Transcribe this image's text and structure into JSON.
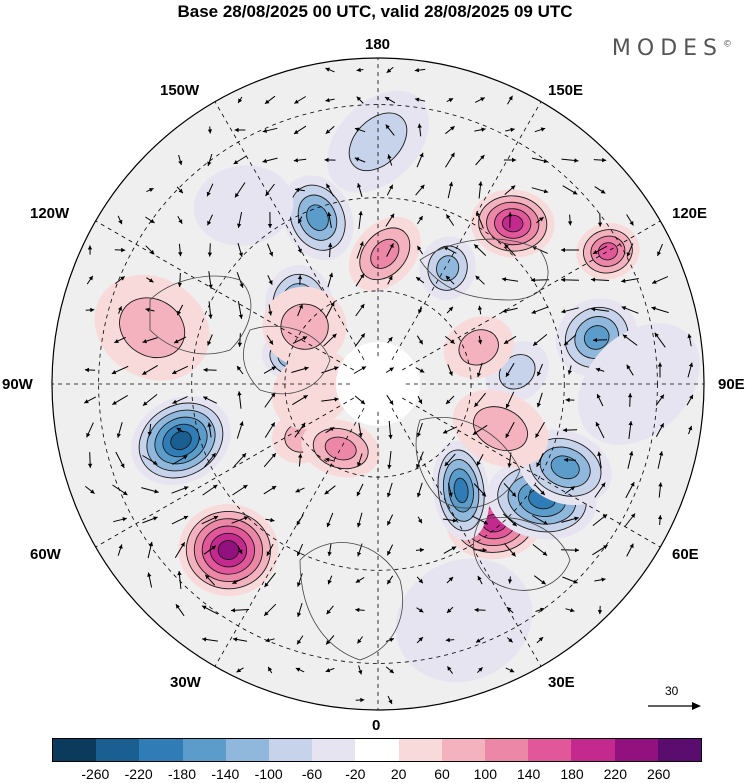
{
  "title": "Base 28/08/2025 00 UTC, valid 28/08/2025 09 UTC",
  "brand": "MODES",
  "brand_mark": "©",
  "longitude_labels": {
    "top": "180",
    "bottom": "0",
    "left": "90W",
    "right": "90E",
    "upper_left_1": "150W",
    "upper_left_2": "120W",
    "lower_left_1": "60W",
    "lower_left_2": "30W",
    "upper_right_1": "150E",
    "upper_right_2": "120E",
    "lower_right_1": "60E",
    "lower_right_2": "30E"
  },
  "reference_vector": {
    "label": "30"
  },
  "colorbar": {
    "colors": [
      "#0b3b5c",
      "#1a5f91",
      "#2f7cb6",
      "#5b9ccb",
      "#8fb8dc",
      "#c6d3ea",
      "#e6e4f1",
      "#ffffff",
      "#f9dada",
      "#f3b2be",
      "#ec87a8",
      "#e2569a",
      "#c42a8e",
      "#93117e",
      "#5a0d6e"
    ],
    "tick_labels": [
      "-260",
      "-220",
      "-180",
      "-140",
      "-100",
      "-60",
      "-20",
      "20",
      "60",
      "100",
      "140",
      "180",
      "220",
      "260"
    ]
  },
  "anomalies": [
    {
      "lon": 40,
      "lat": 51,
      "value": 210,
      "rx": 48,
      "ry": 36
    },
    {
      "lon": 120,
      "lat": 33,
      "value": 140,
      "rx": 32,
      "ry": 28
    },
    {
      "lon": 140,
      "lat": 45,
      "value": 180,
      "rx": 42,
      "ry": 34
    },
    {
      "lon": 177,
      "lat": 62,
      "value": 110,
      "rx": 30,
      "ry": 42
    },
    {
      "lon": 55,
      "lat": 47,
      "value": -200,
      "rx": 55,
      "ry": 40
    },
    {
      "lon": 66,
      "lat": 46,
      "value": -170,
      "rx": 48,
      "ry": 36
    },
    {
      "lon": 38,
      "lat": 61,
      "value": -190,
      "rx": 28,
      "ry": 50
    },
    {
      "lon": 102,
      "lat": 42,
      "value": -160,
      "rx": 42,
      "ry": 38
    },
    {
      "lon": 149,
      "lat": 61,
      "value": -130,
      "rx": 28,
      "ry": 32
    },
    {
      "lon": 200,
      "lat": 52,
      "value": -170,
      "rx": 34,
      "ry": 44
    },
    {
      "lon": 318,
      "lat": 42,
      "value": 220,
      "rx": 50,
      "ry": 46
    },
    {
      "lon": 286,
      "lat": 46,
      "value": -250,
      "rx": 52,
      "ry": 42
    },
    {
      "lon": 217,
      "lat": 42,
      "value": -40,
      "rx": 50,
      "ry": 40
    },
    {
      "lon": 305,
      "lat": 70,
      "value": 60,
      "rx": 30,
      "ry": 26
    },
    {
      "lon": 254,
      "lat": 70,
      "value": -120,
      "rx": 28,
      "ry": 22
    },
    {
      "lon": 330,
      "lat": 74,
      "value": 110,
      "rx": 40,
      "ry": 28
    },
    {
      "lon": 275,
      "lat": 76,
      "value": 40,
      "rx": 44,
      "ry": 36
    },
    {
      "lon": 225,
      "lat": 66,
      "value": -150,
      "rx": 34,
      "ry": 40
    },
    {
      "lon": 232,
      "lat": 70,
      "value": 70,
      "rx": 42,
      "ry": 40
    },
    {
      "lon": 95,
      "lat": 60,
      "value": -90,
      "rx": 34,
      "ry": 28
    },
    {
      "lon": 70,
      "lat": 62,
      "value": 70,
      "rx": 50,
      "ry": 36
    },
    {
      "lon": 110,
      "lat": 67,
      "value": 60,
      "rx": 36,
      "ry": 30
    },
    {
      "lon": 180,
      "lat": 38,
      "value": -60,
      "rx": 60,
      "ry": 40
    },
    {
      "lon": 256,
      "lat": 40,
      "value": 60,
      "rx": 60,
      "ry": 50
    },
    {
      "lon": 20,
      "lat": 36,
      "value": -30,
      "rx": 70,
      "ry": 60
    },
    {
      "lon": 90,
      "lat": 34,
      "value": -40,
      "rx": 70,
      "ry": 50
    }
  ]
}
